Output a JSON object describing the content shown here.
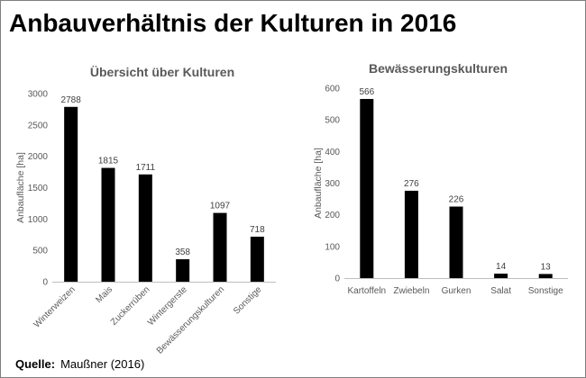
{
  "title": "Anbauverhältnis der Kulturen in 2016",
  "source": {
    "label": "Quelle:",
    "text": "Maußner (2016)"
  },
  "colors": {
    "bar": "#000000",
    "axis_line": "#bfbfbf",
    "axis_text": "#595959",
    "data_label": "#404040",
    "frame": "#7f7f7f"
  },
  "chart_data": [
    {
      "type": "bar",
      "title": "Übersicht über Kulturen",
      "ylabel": "Anbaufläche [ha]",
      "categories": [
        "Winterweizen",
        "Mais",
        "Zuckerrüben",
        "Wintergerste",
        "Bewässerungskulturen",
        "Sonstige"
      ],
      "values": [
        2788,
        1815,
        1711,
        358,
        1097,
        718
      ],
      "ylim": [
        0,
        3000
      ],
      "yticks": [
        0,
        500,
        1000,
        1500,
        2000,
        2500,
        3000
      ],
      "data_labels": true,
      "grid": false,
      "legend": false
    },
    {
      "type": "bar",
      "title": "Bewässerungskulturen",
      "ylabel": "Anbaufläche [ha]",
      "categories": [
        "Kartoffeln",
        "Zwiebeln",
        "Gurken",
        "Salat",
        "Sonstige"
      ],
      "values": [
        566,
        276,
        226,
        14,
        13
      ],
      "ylim": [
        0,
        600
      ],
      "yticks": [
        0,
        100,
        200,
        300,
        400,
        500,
        600
      ],
      "data_labels": true,
      "grid": false,
      "legend": false
    }
  ]
}
